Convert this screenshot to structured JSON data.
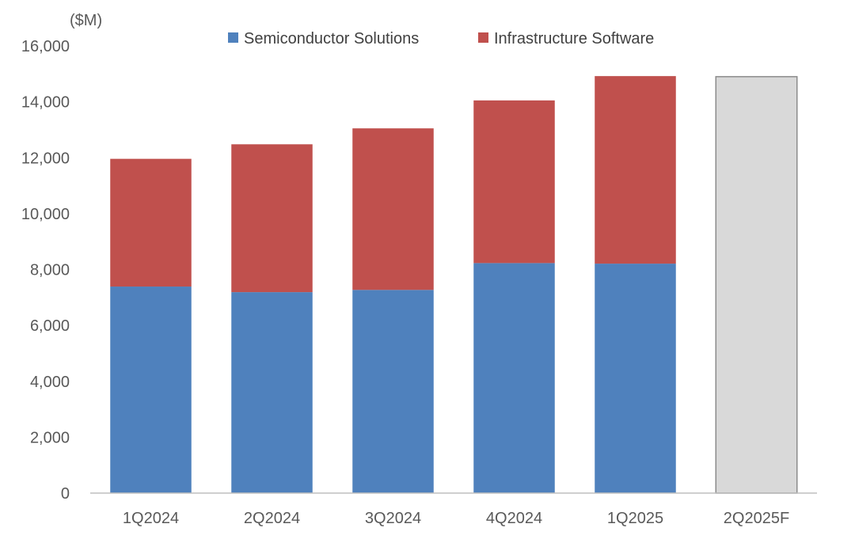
{
  "chart_data": {
    "type": "bar",
    "stacked": true,
    "unit_label": "($M)",
    "categories": [
      "1Q2024",
      "2Q2024",
      "3Q2024",
      "4Q2024",
      "1Q2025",
      "2Q2025F"
    ],
    "series": [
      {
        "name": "Semiconductor Solutions",
        "color": "#4f81bd",
        "values": [
          7390,
          7190,
          7270,
          8230,
          8210,
          null
        ]
      },
      {
        "name": "Infrastructure Software",
        "color": "#c0504d",
        "values": [
          4570,
          5290,
          5780,
          5820,
          6710,
          null
        ]
      }
    ],
    "forecast": {
      "category": "2Q2025F",
      "value": 14900,
      "color": "#d9d9d9",
      "border_color": "#8c8c8c"
    },
    "ylim": [
      0,
      16000
    ],
    "yticks": [
      0,
      2000,
      4000,
      6000,
      8000,
      10000,
      12000,
      14000,
      16000
    ],
    "ytick_labels": [
      "0",
      "2,000",
      "4,000",
      "6,000",
      "8,000",
      "10,000",
      "12,000",
      "14,000",
      "16,000"
    ],
    "grid": false,
    "legend_position": "top"
  }
}
